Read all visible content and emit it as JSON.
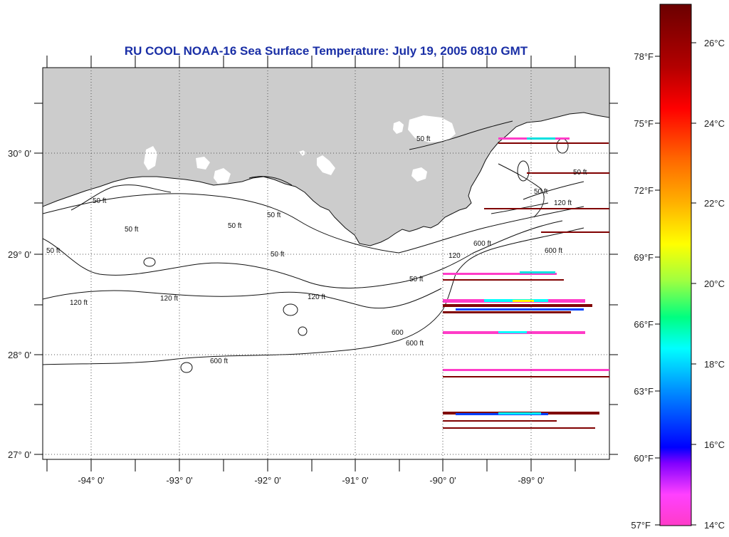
{
  "title": "RU COOL  NOAA-16  Sea Surface Temperature:  July 19, 2005 0810 GMT",
  "map": {
    "land_color": "#cccccc",
    "water_color": "#ffffff",
    "lon_labels": [
      "-94° 0'",
      "-93° 0'",
      "-92° 0'",
      "-91° 0'",
      "-90° 0'",
      "-89° 0'"
    ],
    "lat_labels": [
      "30° 0'",
      "29° 0'",
      "28° 0'",
      "27° 0'"
    ],
    "contour_labels": [
      "50 ft",
      "50 ft",
      "50 ft",
      "50 ft",
      "50 ft",
      "50 ft",
      "50 ft",
      "50 ft",
      "50 ft",
      "50 ft",
      "120 ft",
      "120 ft",
      "120 ft",
      "120",
      "120 ft",
      "600 ft",
      "600",
      "600 ft",
      "600 ft",
      "600 ft"
    ]
  },
  "colorbar": {
    "fahrenheit_labels": [
      "78°F",
      "75°F",
      "72°F",
      "69°F",
      "66°F",
      "63°F",
      "60°F",
      "57°F"
    ],
    "celsius_labels": [
      "26°C",
      "24°C",
      "22°C",
      "20°C",
      "18°C",
      "16°C",
      "14°C"
    ],
    "gradient_stops": [
      "#6b0000",
      "#b30000",
      "#ff0000",
      "#ff6a00",
      "#ffb000",
      "#ffff00",
      "#a0ff40",
      "#00ff80",
      "#00ffff",
      "#0090ff",
      "#0000ff",
      "#8000ff",
      "#ff40ff",
      "#ff3cc8"
    ]
  }
}
